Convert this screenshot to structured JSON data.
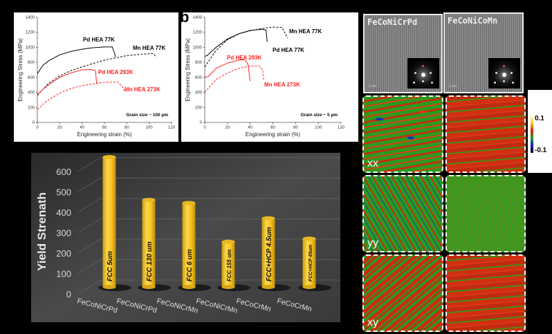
{
  "chart_data": [
    {
      "type": "line",
      "panel_label": "a",
      "xlabel": "Engineering strain (%)",
      "ylabel": "Engineering Stress (MPa)",
      "xlim": [
        0,
        120
      ],
      "ylim": [
        0,
        1400
      ],
      "xticks": [
        0,
        20,
        40,
        60,
        80,
        100,
        120
      ],
      "yticks": [
        0,
        200,
        400,
        600,
        800,
        1000,
        1200,
        1400
      ],
      "annotation": "Grain size ~ 150 µm",
      "series": [
        {
          "name": "Pd HEA 77K",
          "color": "#000000",
          "dash": false,
          "points": [
            [
              0,
              650
            ],
            [
              5,
              760
            ],
            [
              10,
              820
            ],
            [
              20,
              900
            ],
            [
              30,
              945
            ],
            [
              40,
              975
            ],
            [
              50,
              995
            ],
            [
              60,
              1005
            ],
            [
              67,
              1005
            ],
            [
              69,
              920
            ],
            [
              70,
              870
            ]
          ]
        },
        {
          "name": "Mn HEA 77K",
          "color": "#000000",
          "dash": true,
          "points": [
            [
              0,
              360
            ],
            [
              10,
              520
            ],
            [
              20,
              620
            ],
            [
              30,
              690
            ],
            [
              40,
              740
            ],
            [
              60,
              830
            ],
            [
              80,
              890
            ],
            [
              100,
              915
            ],
            [
              104,
              915
            ],
            [
              106,
              870
            ]
          ]
        },
        {
          "name": "Pd HEA 293K",
          "color": "#ff2020",
          "dash": false,
          "points": [
            [
              0,
              370
            ],
            [
              5,
              440
            ],
            [
              10,
              500
            ],
            [
              20,
              600
            ],
            [
              30,
              660
            ],
            [
              40,
              700
            ],
            [
              48,
              705
            ],
            [
              52,
              690
            ],
            [
              53,
              520
            ]
          ]
        },
        {
          "name": "Mn HEA 273K",
          "color": "#ff2020",
          "dash": true,
          "points": [
            [
              0,
              170
            ],
            [
              5,
              240
            ],
            [
              10,
              300
            ],
            [
              20,
              390
            ],
            [
              30,
              450
            ],
            [
              40,
              490
            ],
            [
              60,
              535
            ],
            [
              72,
              535
            ],
            [
              76,
              480
            ],
            [
              78,
              410
            ]
          ]
        }
      ]
    },
    {
      "type": "line",
      "panel_label": "b",
      "xlabel": "Engineering strain (%)",
      "ylabel": "Engineering Stress (MPa)",
      "xlim": [
        0,
        120
      ],
      "ylim": [
        0,
        1400
      ],
      "xticks": [
        0,
        20,
        40,
        60,
        80,
        100,
        120
      ],
      "yticks": [
        0,
        200,
        400,
        600,
        800,
        1000,
        1200,
        1400
      ],
      "annotation": "Grain size ~ 5 µm",
      "series": [
        {
          "name": "Pd HEA 77K",
          "color": "#000000",
          "dash": false,
          "points": [
            [
              0,
              880
            ],
            [
              2,
              890
            ],
            [
              10,
              1000
            ],
            [
              20,
              1110
            ],
            [
              30,
              1180
            ],
            [
              40,
              1225
            ],
            [
              50,
              1240
            ],
            [
              54,
              1230
            ],
            [
              55,
              1070
            ]
          ]
        },
        {
          "name": "Mn HEA 77K",
          "color": "#000000",
          "dash": true,
          "points": [
            [
              0,
              740
            ],
            [
              10,
              960
            ],
            [
              20,
              1100
            ],
            [
              30,
              1180
            ],
            [
              40,
              1220
            ],
            [
              50,
              1250
            ],
            [
              60,
              1270
            ],
            [
              68,
              1265
            ],
            [
              72,
              1150
            ],
            [
              73,
              1120
            ]
          ]
        },
        {
          "name": "Pd HEA 293K",
          "color": "#ff2020",
          "dash": false,
          "points": [
            [
              0,
              600
            ],
            [
              3,
              610
            ],
            [
              10,
              720
            ],
            [
              20,
              790
            ],
            [
              30,
              830
            ],
            [
              35,
              835
            ],
            [
              38,
              780
            ],
            [
              40,
              550
            ]
          ]
        },
        {
          "name": "Mn HEA 273K",
          "color": "#ff2020",
          "dash": true,
          "points": [
            [
              0,
              400
            ],
            [
              10,
              570
            ],
            [
              20,
              660
            ],
            [
              30,
              720
            ],
            [
              40,
              750
            ],
            [
              48,
              750
            ],
            [
              51,
              700
            ],
            [
              52,
              560
            ]
          ]
        }
      ]
    },
    {
      "type": "bar",
      "ylabel": "Yield Strenath",
      "ylim": [
        0,
        600
      ],
      "yticks": [
        0,
        100,
        200,
        300,
        400,
        500,
        600
      ],
      "categories": [
        "FeCoNiCrPd",
        "FeCoNiCrPd",
        "FeCoNiCrMn",
        "FeCoNiCrMn",
        "FeCoCrMn",
        "FeCoCrMn"
      ],
      "bar_labels": [
        "FCC 5um",
        "FCC 130 um",
        "FCC 6 um",
        "FCC 155 um",
        "FCC+HCP 4.5um",
        "FCC+HCP 45um"
      ],
      "values": [
        630,
        420,
        405,
        215,
        330,
        230
      ],
      "bar_color": "#f5c020"
    }
  ],
  "tem": {
    "left_title": "FeCoNiCrPd",
    "right_title": "FeCoNiCoMn",
    "scale_bar": "2 nm"
  },
  "strain_maps": {
    "row_labels": [
      "xx",
      "yy",
      "xy"
    ]
  },
  "colorbar": {
    "max": "0.1",
    "min": "-0.1"
  }
}
